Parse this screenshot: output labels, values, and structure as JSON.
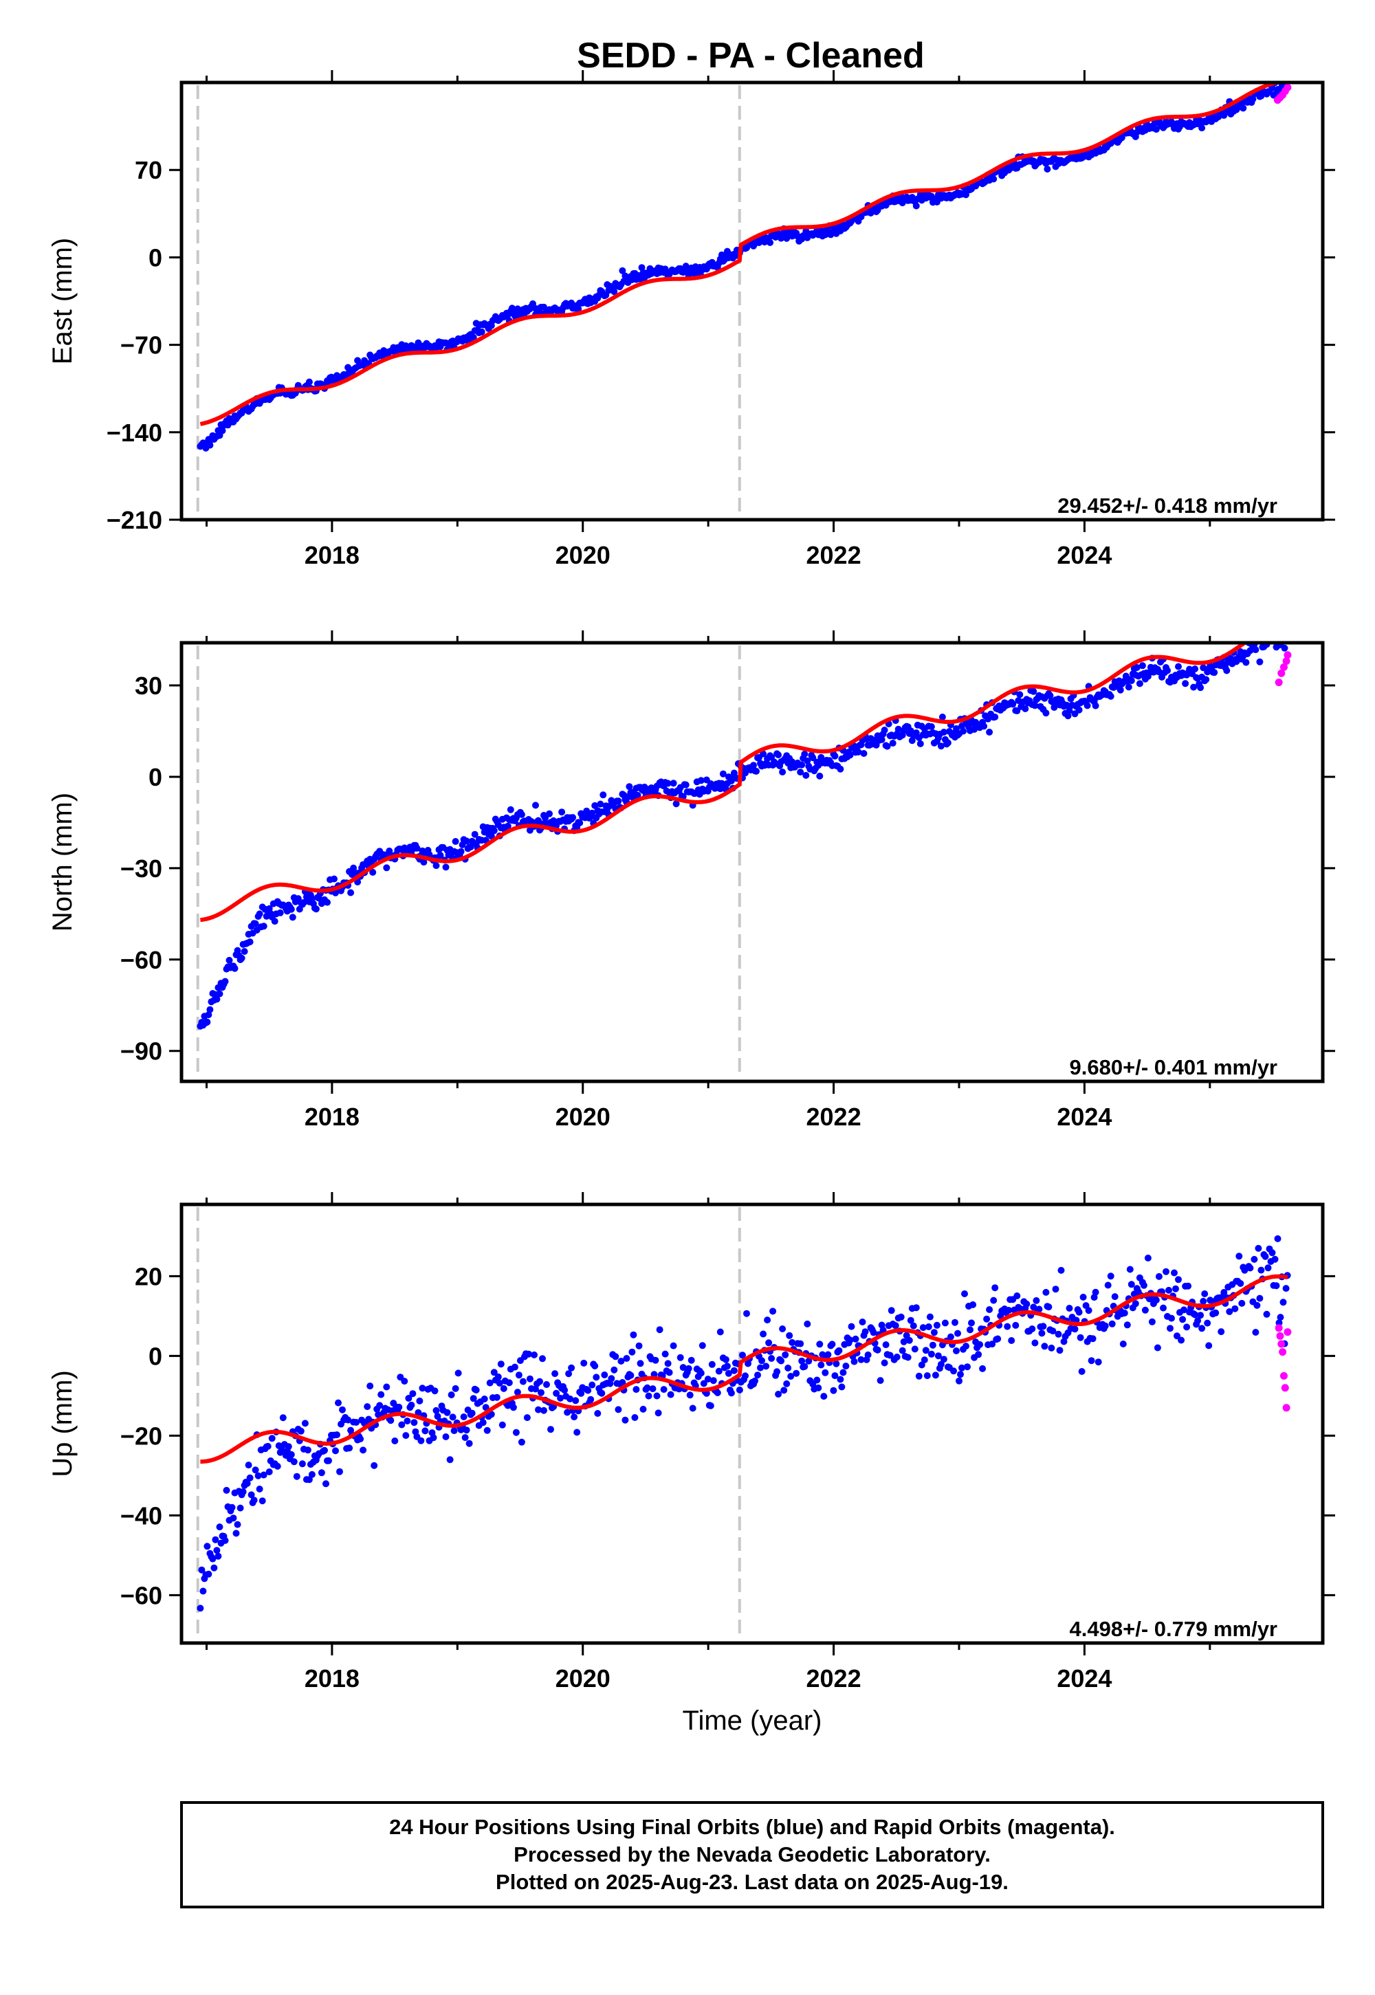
{
  "title": "SEDD  - PA - Cleaned",
  "footer": {
    "lines": [
      "24 Hour Positions Using Final Orbits (blue) and Rapid Orbits (magenta).",
      "Processed by the Nevada Geodetic Laboratory.",
      "Plotted on 2025-Aug-23. Last data on 2025-Aug-19."
    ]
  },
  "colors": {
    "final_orbits": "#0000ff",
    "rapid_orbits": "#ff00ff",
    "model_fit": "#ff0000",
    "break_line": "#c8c8c8"
  },
  "chart_data": [
    {
      "type": "scatter",
      "name": "east",
      "ylabel": "East (mm)",
      "xlabel": "",
      "xlim": [
        2016.8,
        2025.9
      ],
      "ylim": [
        -210,
        140
      ],
      "x_ticks": [
        2018,
        2020,
        2022,
        2024
      ],
      "y_ticks": [
        -210,
        -140,
        -70,
        0,
        70
      ],
      "y_tick_labels": [
        "−210",
        "−140",
        "−70",
        "0",
        "70"
      ],
      "rate_text": "29.452+/- 0.418 mm/yr",
      "breaks": [
        2016.93,
        2021.25
      ],
      "trend": {
        "start": 2016.95,
        "end": 2025.62,
        "a": 25,
        "tau": 0.6,
        "rate": 29.452,
        "off": 3,
        "seas": 4.5
      },
      "fit": {
        "rate": 29.452,
        "offset": 8,
        "seas_amp": 4.5,
        "step_at": 2021.25,
        "pre_step": -12
      },
      "noise": 2,
      "rapid": {
        "x": [
          2025.54,
          2025.56,
          2025.58,
          2025.6,
          2025.62
        ],
        "y": [
          126,
          128,
          130,
          133,
          136
        ]
      }
    },
    {
      "type": "scatter",
      "name": "north",
      "ylabel": "North (mm)",
      "xlabel": "",
      "xlim": [
        2016.8,
        2025.9
      ],
      "ylim": [
        -100,
        44
      ],
      "x_ticks": [
        2018,
        2020,
        2022,
        2024
      ],
      "y_ticks": [
        -90,
        -60,
        -30,
        0,
        30
      ],
      "y_tick_labels": [
        "−90",
        "−60",
        "−30",
        "0",
        "30"
      ],
      "rate_text": "9.680+/- 0.401 mm/yr",
      "breaks": [
        2016.93,
        2021.25
      ],
      "trend": {
        "start": 2016.95,
        "end": 2025.62,
        "a": 40,
        "tau": 0.45,
        "rate": 9.68,
        "off": 0,
        "seas": 2.5
      },
      "fit": {
        "rate": 9.68,
        "offset": 4,
        "seas_amp": 3,
        "step_at": 2021.25,
        "pre_step": -7
      },
      "noise": 1.8,
      "rapid": {
        "x": [
          2025.55,
          2025.57,
          2025.59,
          2025.61,
          2025.62
        ],
        "y": [
          31,
          34,
          36,
          38,
          40
        ]
      }
    },
    {
      "type": "scatter",
      "name": "up",
      "ylabel": "Up (mm)",
      "xlabel": "Time (year)",
      "xlim": [
        2016.8,
        2025.9
      ],
      "ylim": [
        -72,
        38
      ],
      "x_ticks": [
        2018,
        2020,
        2022,
        2024
      ],
      "y_ticks": [
        -60,
        -40,
        -20,
        0,
        20
      ],
      "y_tick_labels": [
        "−60",
        "−40",
        "−20",
        "0",
        "20"
      ],
      "rate_text": "4.498+/- 0.779 mm/yr",
      "breaks": [
        2016.93,
        2021.25
      ],
      "trend": {
        "start": 2016.95,
        "end": 2025.62,
        "a": 33,
        "tau": 0.4,
        "rate": 4.5,
        "off": -3,
        "seas": 3
      },
      "fit": {
        "rate": 4.498,
        "offset": -2,
        "seas_amp": 2.5,
        "step_at": 2021.25,
        "pre_step": -3
      },
      "noise": 4.5,
      "rapid": {
        "x": [
          2025.55,
          2025.56,
          2025.57,
          2025.58,
          2025.59,
          2025.6,
          2025.61,
          2025.62
        ],
        "y": [
          7,
          5,
          3,
          1,
          -5,
          -8,
          -13,
          6
        ]
      }
    }
  ]
}
